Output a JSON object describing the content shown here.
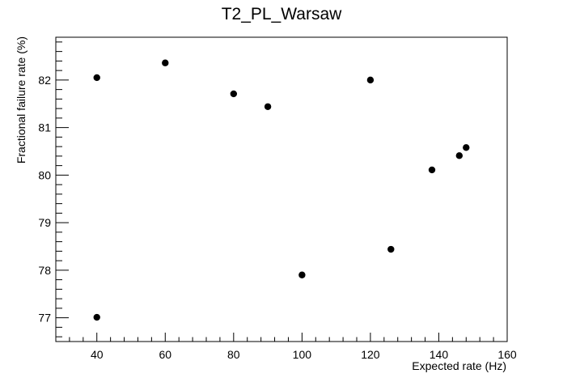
{
  "chart_data": {
    "type": "scatter",
    "title": "T2_PL_Warsaw",
    "xlabel": "Expected rate (Hz)",
    "ylabel": "Fractional failure rate (%)",
    "xlim": [
      28,
      160
    ],
    "ylim": [
      76.5,
      82.9
    ],
    "xticks": [
      40,
      60,
      80,
      100,
      120,
      140,
      160
    ],
    "yticks": [
      77,
      78,
      79,
      80,
      81,
      82
    ],
    "grid": false,
    "colors": {
      "marker": "#000000",
      "frame": "#000000"
    },
    "series": [
      {
        "points": [
          {
            "x": 40,
            "y": 82.05
          },
          {
            "x": 40,
            "y": 77.01
          },
          {
            "x": 60,
            "y": 82.36
          },
          {
            "x": 80,
            "y": 81.71
          },
          {
            "x": 90,
            "y": 81.44
          },
          {
            "x": 100,
            "y": 77.9
          },
          {
            "x": 120,
            "y": 82.0
          },
          {
            "x": 126,
            "y": 78.44
          },
          {
            "x": 138,
            "y": 80.11
          },
          {
            "x": 146,
            "y": 80.41
          },
          {
            "x": 148,
            "y": 80.58
          }
        ]
      }
    ]
  }
}
